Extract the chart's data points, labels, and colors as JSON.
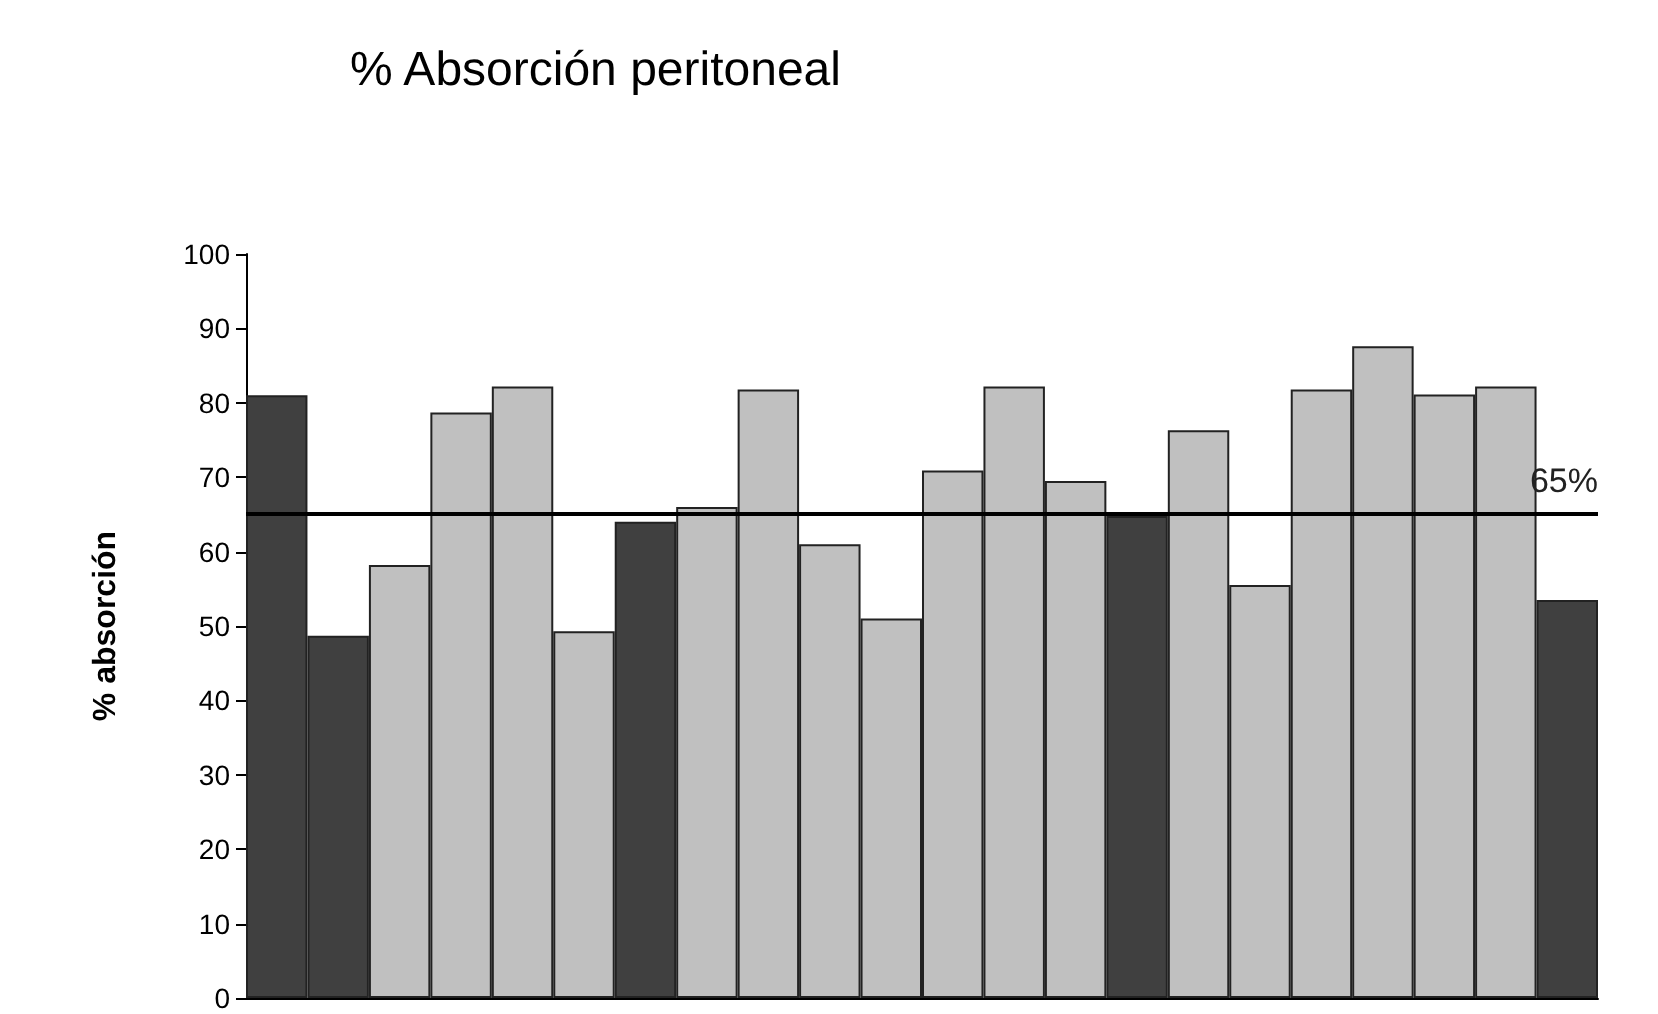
{
  "chart_data": {
    "type": "bar",
    "title": "% Absorción peritoneal",
    "ylabel": "% absorción",
    "categories": [
      null,
      null,
      null,
      null,
      null,
      null,
      null,
      null,
      null,
      null,
      null,
      null,
      null,
      null,
      null,
      null,
      null,
      null,
      null,
      null,
      null,
      null
    ],
    "values": [
      81,
      48.7,
      58.2,
      78.7,
      82.2,
      49.3,
      64,
      66,
      81.8,
      61,
      51,
      70.9,
      82.2,
      69.5,
      64.8,
      76.3,
      55.5,
      81.8,
      87.6,
      81.1,
      82.2,
      53.5
    ],
    "colors": [
      "#404040",
      "#404040",
      "#c0c0c0",
      "#c0c0c0",
      "#c0c0c0",
      "#c0c0c0",
      "#404040",
      "#c0c0c0",
      "#c0c0c0",
      "#c0c0c0",
      "#c0c0c0",
      "#c0c0c0",
      "#c0c0c0",
      "#c0c0c0",
      "#404040",
      "#c0c0c0",
      "#c0c0c0",
      "#c0c0c0",
      "#c0c0c0",
      "#c0c0c0",
      "#c0c0c0",
      "#404040"
    ],
    "ylim": [
      0,
      100
    ],
    "yticks": [
      0,
      10,
      20,
      30,
      40,
      50,
      60,
      70,
      80,
      90,
      100
    ],
    "ref_lines": [
      {
        "axis": "y",
        "value": 65,
        "label": "65%",
        "color": "#000000"
      }
    ],
    "grid": false
  }
}
